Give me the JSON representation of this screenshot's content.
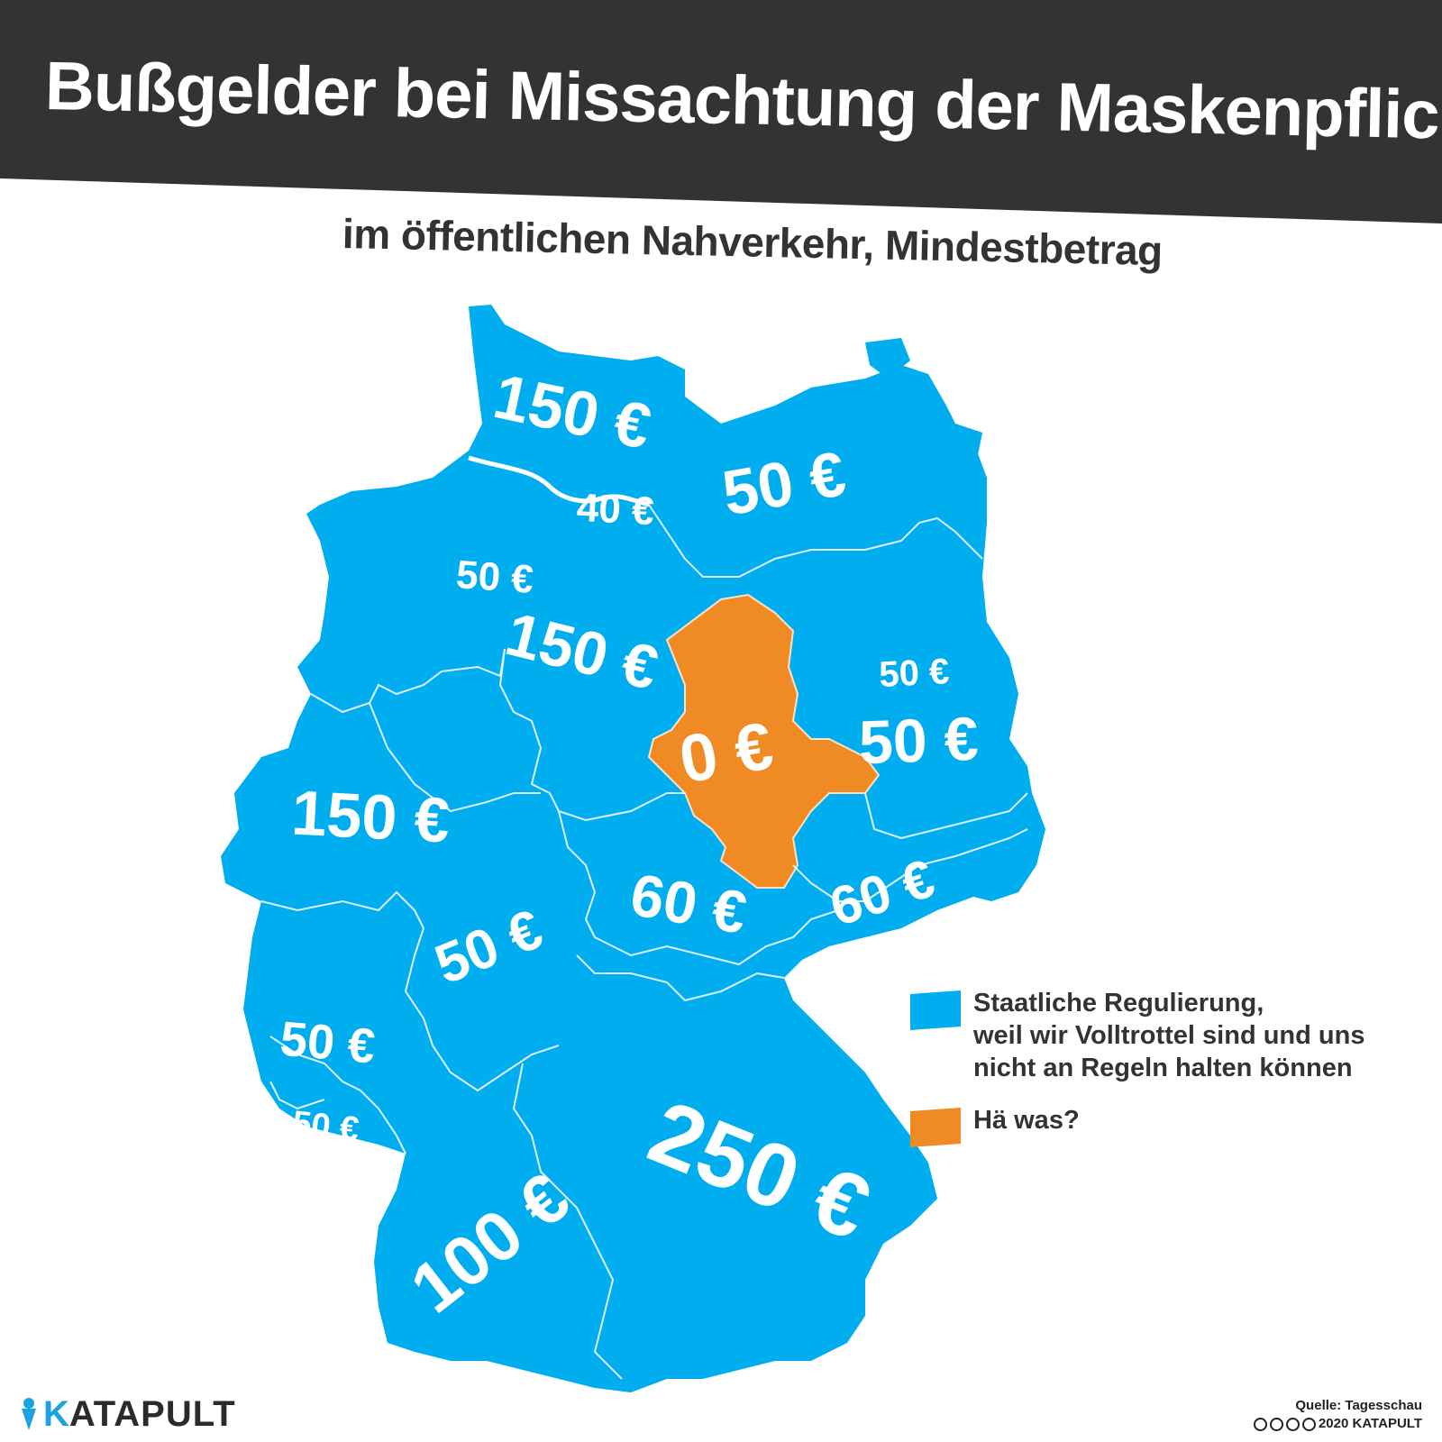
{
  "title": "Bußgelder bei Missachtung der Maskenpflicht",
  "subtitle": "im öffentlichen Nahverkehr, Mindestbetrag",
  "colors": {
    "header": "#333333",
    "blue": "#00adef",
    "orange": "#f08a24",
    "border": "#dff3fd"
  },
  "regions": [
    {
      "label": "150 €",
      "color": "blue"
    },
    {
      "label": "40 €",
      "color": "blue"
    },
    {
      "label": "50 €",
      "color": "blue"
    },
    {
      "label": "50 €",
      "color": "blue"
    },
    {
      "label": "150 €",
      "color": "blue"
    },
    {
      "label": "0 €",
      "color": "orange"
    },
    {
      "label": "50 €",
      "color": "blue"
    },
    {
      "label": "50 €",
      "color": "blue"
    },
    {
      "label": "150 €",
      "color": "blue"
    },
    {
      "label": "50 €",
      "color": "blue"
    },
    {
      "label": "60 €",
      "color": "blue"
    },
    {
      "label": "60 €",
      "color": "blue"
    },
    {
      "label": "50 €",
      "color": "blue"
    },
    {
      "label": "50 €",
      "color": "blue"
    },
    {
      "label": "100 €",
      "color": "blue"
    },
    {
      "label": "250 €",
      "color": "blue"
    }
  ],
  "legend": [
    {
      "color": "blue",
      "text": [
        "Staatliche Regulierung,",
        "weil wir Volltrottel sind und uns",
        "nicht an Regeln halten können"
      ]
    },
    {
      "color": "orange",
      "text": [
        "Hä was?"
      ]
    }
  ],
  "brand": {
    "k": "K",
    "rest": "ATAPULT"
  },
  "source": {
    "line1": "Quelle: Tagesschau",
    "line2": "2020 KATAPULT"
  }
}
